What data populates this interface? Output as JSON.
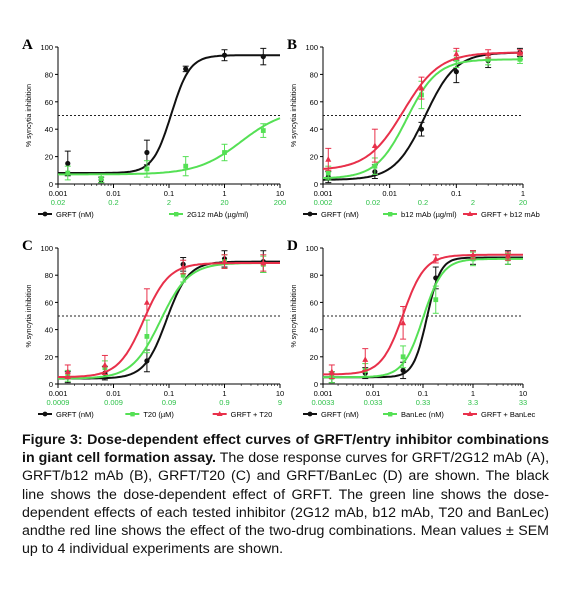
{
  "caption": {
    "label": "Figure 3: Dose-dependent effect curves of GRFT/entry inhibitor combinations in giant cell formation assay.",
    "text": "The dose response curves for GRFT/2G12 mAb (A), GRFT/b12 mAb (B), GRFT/T20 (C) and GRFT/BanLec (D) are shown. The black line shows the dose-dependent effect of GRFT. The green line shows the dose-dependent effects of each tested inhibitor (2G12 mAb, b12 mAb, T20 and BanLec) andthe red line shows the effect of the two-drug combinations. Mean values ± SEM up to 4 individual experiments are shown."
  },
  "colors": {
    "grft": "#111111",
    "inhibitor": "#55e055",
    "combo": "#e8304a",
    "threshold": "#222222"
  },
  "chart_data": [
    {
      "panel": "A",
      "type": "line",
      "xscale": "log",
      "xlim": [
        0.001,
        10
      ],
      "ylim": [
        0,
        100
      ],
      "ylabel": "% syncytia inhibition",
      "xticks": [
        "0.001",
        "0.01",
        "0.1",
        "1",
        "10"
      ],
      "xticks2": [
        "0.02",
        "0.2",
        "2",
        "20",
        "200"
      ],
      "yticks": [
        "0",
        "20",
        "40",
        "60",
        "80",
        "100"
      ],
      "threshold": 50,
      "legend": [
        "GRFT (nM)",
        "2G12 mAb (µg/ml)"
      ],
      "series": [
        {
          "name": "GRFT (nM)",
          "color": "#111111",
          "marker": "circle",
          "x": [
            0.0015,
            0.006,
            0.04,
            0.2,
            1,
            5
          ],
          "y": [
            15,
            3,
            23,
            84,
            94,
            93
          ],
          "err": [
            9,
            2,
            9,
            2,
            4,
            6
          ],
          "fit": {
            "bottom": 8,
            "top": 94,
            "ec50": 0.11,
            "hill": 2.6
          }
        },
        {
          "name": "2G12 mAb (µg/ml)",
          "color": "#55e055",
          "marker": "square",
          "x": [
            0.0015,
            0.006,
            0.04,
            0.2,
            1,
            5
          ],
          "y": [
            8,
            4,
            11,
            13,
            23,
            39
          ],
          "err": [
            5,
            3,
            6,
            7,
            6,
            5
          ],
          "fit": {
            "bottom": 7,
            "top": 55,
            "ec50": 2,
            "hill": 1.1
          }
        }
      ]
    },
    {
      "panel": "B",
      "type": "line",
      "xscale": "log",
      "xlim": [
        0.001,
        1
      ],
      "ylim": [
        0,
        100
      ],
      "ylabel": "% syncytia inhibition",
      "xticks": [
        "0.001",
        "0.01",
        "0.1",
        "1"
      ],
      "xticks2": [
        "0.002",
        "0.02",
        "0.2",
        "2",
        "20"
      ],
      "yticks": [
        "0",
        "20",
        "40",
        "60",
        "80",
        "100"
      ],
      "threshold": 50,
      "legend": [
        "GRFT (nM)",
        "b12 mAb (µg/ml)",
        "GRFT + b12 mAb"
      ],
      "series": [
        {
          "name": "GRFT (nM)",
          "color": "#111111",
          "marker": "circle",
          "x": [
            0.0012,
            0.006,
            0.03,
            0.1,
            0.3,
            0.9
          ],
          "y": [
            5,
            9,
            40,
            82,
            90,
            96
          ],
          "err": [
            4,
            5,
            5,
            8,
            5,
            3
          ],
          "fit": {
            "bottom": 3,
            "top": 96,
            "ec50": 0.034,
            "hill": 1.9
          }
        },
        {
          "name": "b12 mAb (µg/ml)",
          "color": "#55e055",
          "marker": "square",
          "x": [
            0.0012,
            0.006,
            0.03,
            0.1,
            0.3,
            0.9
          ],
          "y": [
            8,
            13,
            65,
            91,
            91,
            91
          ],
          "err": [
            5,
            6,
            10,
            6,
            4,
            3
          ],
          "fit": {
            "bottom": 4,
            "top": 91,
            "ec50": 0.018,
            "hill": 1.9
          }
        },
        {
          "name": "GRFT + b12 mAb",
          "color": "#e8304a",
          "marker": "triangle",
          "x": [
            0.0012,
            0.006,
            0.03,
            0.1,
            0.3,
            0.9
          ],
          "y": [
            18,
            28,
            70,
            95,
            95,
            96
          ],
          "err": [
            8,
            12,
            8,
            4,
            3,
            2
          ],
          "fit": {
            "bottom": 10,
            "top": 96,
            "ec50": 0.016,
            "hill": 1.6
          }
        }
      ]
    },
    {
      "panel": "C",
      "type": "line",
      "xscale": "log",
      "xlim": [
        0.001,
        10
      ],
      "ylim": [
        0,
        100
      ],
      "ylabel": "% syncytia inhibition",
      "xticks": [
        "0.001",
        "0.01",
        "0.1",
        "1",
        "10"
      ],
      "xticks2": [
        "0.0009",
        "0.009",
        "0.09",
        "0.9",
        "9"
      ],
      "yticks": [
        "0",
        "20",
        "40",
        "60",
        "80",
        "100"
      ],
      "threshold": 50,
      "legend": [
        "GRFT (nM)",
        "T20 (µM)",
        "GRFT + T20"
      ],
      "series": [
        {
          "name": "GRFT (nM)",
          "color": "#111111",
          "marker": "circle",
          "x": [
            0.0015,
            0.007,
            0.04,
            0.18,
            1,
            5
          ],
          "y": [
            5,
            8,
            17,
            88,
            92,
            90
          ],
          "err": [
            4,
            5,
            8,
            5,
            6,
            8
          ],
          "fit": {
            "bottom": 4,
            "top": 90,
            "ec50": 0.09,
            "hill": 2.2
          }
        },
        {
          "name": "T20 (µM)",
          "color": "#55e055",
          "marker": "square",
          "x": [
            0.0015,
            0.007,
            0.04,
            0.18,
            1,
            5
          ],
          "y": [
            6,
            12,
            35,
            80,
            90,
            88
          ],
          "err": [
            4,
            5,
            12,
            5,
            5,
            6
          ],
          "fit": {
            "bottom": 4,
            "top": 89,
            "ec50": 0.07,
            "hill": 1.7
          }
        },
        {
          "name": "GRFT + T20",
          "color": "#e8304a",
          "marker": "triangle",
          "x": [
            0.0015,
            0.007,
            0.04,
            0.18,
            1,
            5
          ],
          "y": [
            9,
            14,
            60,
            86,
            90,
            89
          ],
          "err": [
            5,
            7,
            10,
            5,
            5,
            6
          ],
          "fit": {
            "bottom": 5,
            "top": 89,
            "ec50": 0.035,
            "hill": 1.9
          }
        }
      ]
    },
    {
      "panel": "D",
      "type": "line",
      "xscale": "log",
      "xlim": [
        0.001,
        10
      ],
      "ylim": [
        0,
        100
      ],
      "ylabel": "% syncytia inhibition",
      "xticks": [
        "0.001",
        "0.01",
        "0.1",
        "1",
        "10"
      ],
      "xticks2": [
        "0.0033",
        "0.033",
        "0.33",
        "3.3",
        "33"
      ],
      "yticks": [
        "0",
        "20",
        "40",
        "60",
        "80",
        "100"
      ],
      "threshold": 50,
      "legend": [
        "GRFT (nM)",
        "BanLec (nM)",
        "GRFT + BanLec"
      ],
      "series": [
        {
          "name": "GRFT (nM)",
          "color": "#111111",
          "marker": "circle",
          "x": [
            0.0015,
            0.007,
            0.04,
            0.18,
            1,
            5
          ],
          "y": [
            5,
            8,
            10,
            78,
            93,
            93
          ],
          "err": [
            4,
            4,
            6,
            8,
            5,
            5
          ],
          "fit": {
            "bottom": 5,
            "top": 93,
            "ec50": 0.12,
            "hill": 3.2
          }
        },
        {
          "name": "BanLec (nM)",
          "color": "#55e055",
          "marker": "square",
          "x": [
            0.0015,
            0.007,
            0.04,
            0.18,
            1,
            5
          ],
          "y": [
            5,
            10,
            20,
            62,
            92,
            92
          ],
          "err": [
            4,
            5,
            8,
            10,
            5,
            4
          ],
          "fit": {
            "bottom": 5,
            "top": 92,
            "ec50": 0.1,
            "hill": 2.2
          }
        },
        {
          "name": "GRFT + BanLec",
          "color": "#e8304a",
          "marker": "triangle",
          "x": [
            0.0015,
            0.007,
            0.04,
            0.18,
            1,
            5
          ],
          "y": [
            9,
            18,
            45,
            92,
            95,
            94
          ],
          "err": [
            5,
            8,
            12,
            3,
            3,
            3
          ],
          "fit": {
            "bottom": 7,
            "top": 95,
            "ec50": 0.04,
            "hill": 2.0
          }
        }
      ]
    }
  ]
}
